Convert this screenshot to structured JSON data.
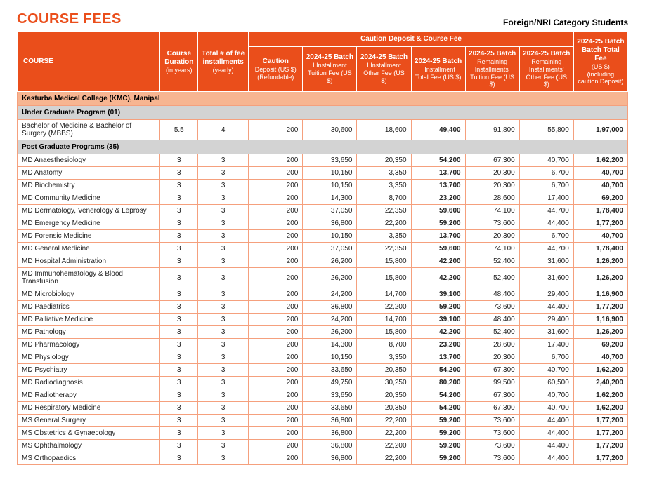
{
  "page": {
    "title": "COURSE FEES",
    "subtitle": "Foreign/NRI Category Students"
  },
  "headers": {
    "course": "COURSE",
    "duration": "Course Duration",
    "duration_sub": "(in years)",
    "installments": "Total # of fee installments",
    "installments_sub": "(yearly)",
    "group": "Caution Deposit & Course Fee",
    "caution": "Caution",
    "caution_sub1": "Deposit (US $)",
    "caution_sub2": "(Refundable)",
    "batch": "2024-25 Batch",
    "i_tuition": "I Installment Tuition Fee (US $)",
    "i_other": "I Installment Other Fee (US $)",
    "i_total": "I Installment Total Fee (US $)",
    "rem_tuition": "Remaining Installments' Tuition Fee (US $)",
    "rem_other": "Remaining Installments' Other Fee (US $)",
    "total": "Batch Total Fee",
    "total_sub1": "(US $)",
    "total_sub2": "(including caution Deposit)"
  },
  "college": "Kasturba Medical College (KMC), Manipal",
  "section_ug": "Under Graduate Program (01)",
  "section_pg": "Post Graduate Programs (35)",
  "ug_rows": [
    {
      "name": "Bachelor of Medicine & Bachelor of Surgery (MBBS)",
      "dur": "5.5",
      "inst": "4",
      "caution": "200",
      "i_tui": "30,600",
      "i_oth": "18,600",
      "i_tot": "49,400",
      "r_tui": "91,800",
      "r_oth": "55,800",
      "total": "1,97,000"
    }
  ],
  "pg_rows": [
    {
      "name": "MD Anaesthesiology",
      "dur": "3",
      "inst": "3",
      "caution": "200",
      "i_tui": "33,650",
      "i_oth": "20,350",
      "i_tot": "54,200",
      "r_tui": "67,300",
      "r_oth": "40,700",
      "total": "1,62,200"
    },
    {
      "name": "MD Anatomy",
      "dur": "3",
      "inst": "3",
      "caution": "200",
      "i_tui": "10,150",
      "i_oth": "3,350",
      "i_tot": "13,700",
      "r_tui": "20,300",
      "r_oth": "6,700",
      "total": "40,700"
    },
    {
      "name": "MD Biochemistry",
      "dur": "3",
      "inst": "3",
      "caution": "200",
      "i_tui": "10,150",
      "i_oth": "3,350",
      "i_tot": "13,700",
      "r_tui": "20,300",
      "r_oth": "6,700",
      "total": "40,700"
    },
    {
      "name": "MD Community Medicine",
      "dur": "3",
      "inst": "3",
      "caution": "200",
      "i_tui": "14,300",
      "i_oth": "8,700",
      "i_tot": "23,200",
      "r_tui": "28,600",
      "r_oth": "17,400",
      "total": "69,200"
    },
    {
      "name": "MD Dermatology, Venerology & Leprosy",
      "dur": "3",
      "inst": "3",
      "caution": "200",
      "i_tui": "37,050",
      "i_oth": "22,350",
      "i_tot": "59,600",
      "r_tui": "74,100",
      "r_oth": "44,700",
      "total": "1,78,400"
    },
    {
      "name": "MD Emergency Medicine",
      "dur": "3",
      "inst": "3",
      "caution": "200",
      "i_tui": "36,800",
      "i_oth": "22,200",
      "i_tot": "59,200",
      "r_tui": "73,600",
      "r_oth": "44,400",
      "total": "1,77,200"
    },
    {
      "name": "MD Forensic Medicine",
      "dur": "3",
      "inst": "3",
      "caution": "200",
      "i_tui": "10,150",
      "i_oth": "3,350",
      "i_tot": "13,700",
      "r_tui": "20,300",
      "r_oth": "6,700",
      "total": "40,700"
    },
    {
      "name": "MD General Medicine",
      "dur": "3",
      "inst": "3",
      "caution": "200",
      "i_tui": "37,050",
      "i_oth": "22,350",
      "i_tot": "59,600",
      "r_tui": "74,100",
      "r_oth": "44,700",
      "total": "1,78,400"
    },
    {
      "name": "MD Hospital Administration",
      "dur": "3",
      "inst": "3",
      "caution": "200",
      "i_tui": "26,200",
      "i_oth": "15,800",
      "i_tot": "42,200",
      "r_tui": "52,400",
      "r_oth": "31,600",
      "total": "1,26,200"
    },
    {
      "name": "MD Immunohematology & Blood Transfusion",
      "dur": "3",
      "inst": "3",
      "caution": "200",
      "i_tui": "26,200",
      "i_oth": "15,800",
      "i_tot": "42,200",
      "r_tui": "52,400",
      "r_oth": "31,600",
      "total": "1,26,200"
    },
    {
      "name": "MD Microbiology",
      "dur": "3",
      "inst": "3",
      "caution": "200",
      "i_tui": "24,200",
      "i_oth": "14,700",
      "i_tot": "39,100",
      "r_tui": "48,400",
      "r_oth": "29,400",
      "total": "1,16,900"
    },
    {
      "name": "MD Paediatrics",
      "dur": "3",
      "inst": "3",
      "caution": "200",
      "i_tui": "36,800",
      "i_oth": "22,200",
      "i_tot": "59,200",
      "r_tui": "73,600",
      "r_oth": "44,400",
      "total": "1,77,200"
    },
    {
      "name": "MD Palliative Medicine",
      "dur": "3",
      "inst": "3",
      "caution": "200",
      "i_tui": "24,200",
      "i_oth": "14,700",
      "i_tot": "39,100",
      "r_tui": "48,400",
      "r_oth": "29,400",
      "total": "1,16,900"
    },
    {
      "name": "MD Pathology",
      "dur": "3",
      "inst": "3",
      "caution": "200",
      "i_tui": "26,200",
      "i_oth": "15,800",
      "i_tot": "42,200",
      "r_tui": "52,400",
      "r_oth": "31,600",
      "total": "1,26,200"
    },
    {
      "name": "MD Pharmacology",
      "dur": "3",
      "inst": "3",
      "caution": "200",
      "i_tui": "14,300",
      "i_oth": "8,700",
      "i_tot": "23,200",
      "r_tui": "28,600",
      "r_oth": "17,400",
      "total": "69,200"
    },
    {
      "name": "MD Physiology",
      "dur": "3",
      "inst": "3",
      "caution": "200",
      "i_tui": "10,150",
      "i_oth": "3,350",
      "i_tot": "13,700",
      "r_tui": "20,300",
      "r_oth": "6,700",
      "total": "40,700"
    },
    {
      "name": "MD Psychiatry",
      "dur": "3",
      "inst": "3",
      "caution": "200",
      "i_tui": "33,650",
      "i_oth": "20,350",
      "i_tot": "54,200",
      "r_tui": "67,300",
      "r_oth": "40,700",
      "total": "1,62,200"
    },
    {
      "name": "MD Radiodiagnosis",
      "dur": "3",
      "inst": "3",
      "caution": "200",
      "i_tui": "49,750",
      "i_oth": "30,250",
      "i_tot": "80,200",
      "r_tui": "99,500",
      "r_oth": "60,500",
      "total": "2,40,200"
    },
    {
      "name": "MD Radiotherapy",
      "dur": "3",
      "inst": "3",
      "caution": "200",
      "i_tui": "33,650",
      "i_oth": "20,350",
      "i_tot": "54,200",
      "r_tui": "67,300",
      "r_oth": "40,700",
      "total": "1,62,200"
    },
    {
      "name": "MD Respiratory Medicine",
      "dur": "3",
      "inst": "3",
      "caution": "200",
      "i_tui": "33,650",
      "i_oth": "20,350",
      "i_tot": "54,200",
      "r_tui": "67,300",
      "r_oth": "40,700",
      "total": "1,62,200"
    },
    {
      "name": "MS General Surgery",
      "dur": "3",
      "inst": "3",
      "caution": "200",
      "i_tui": "36,800",
      "i_oth": "22,200",
      "i_tot": "59,200",
      "r_tui": "73,600",
      "r_oth": "44,400",
      "total": "1,77,200"
    },
    {
      "name": "MS Obstetrics & Gynaecology",
      "dur": "3",
      "inst": "3",
      "caution": "200",
      "i_tui": "36,800",
      "i_oth": "22,200",
      "i_tot": "59,200",
      "r_tui": "73,600",
      "r_oth": "44,400",
      "total": "1,77,200"
    },
    {
      "name": "MS Ophthalmology",
      "dur": "3",
      "inst": "3",
      "caution": "200",
      "i_tui": "36,800",
      "i_oth": "22,200",
      "i_tot": "59,200",
      "r_tui": "73,600",
      "r_oth": "44,400",
      "total": "1,77,200"
    },
    {
      "name": "MS Orthopaedics",
      "dur": "3",
      "inst": "3",
      "caution": "200",
      "i_tui": "36,800",
      "i_oth": "22,200",
      "i_tot": "59,200",
      "r_tui": "73,600",
      "r_oth": "44,400",
      "total": "1,77,200"
    }
  ]
}
